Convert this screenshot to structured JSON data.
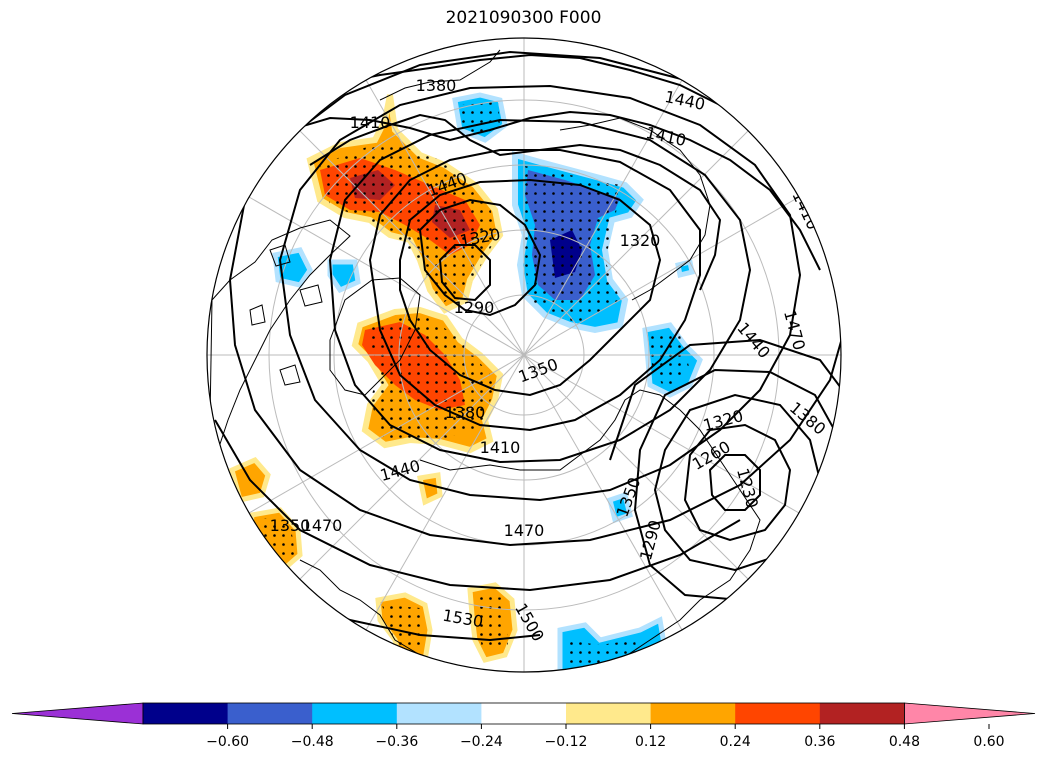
{
  "title": "2021090300 F000",
  "map": {
    "projection": "north-polar-stereographic",
    "field_colors": {
      "positive": [
        "#ffe98c",
        "#ffa500",
        "#ff4500",
        "#b22222"
      ],
      "negative": [
        "#b2e2ff",
        "#00bfff",
        "#3a5fcd",
        "#00008b"
      ],
      "stipple": "#000000",
      "contour": "#000000",
      "coastline": "#000000",
      "grid": "#bbbbbb"
    },
    "contour_labels": [
      {
        "id": "c1380a",
        "text": "1380"
      },
      {
        "id": "c1410a",
        "text": "1410"
      },
      {
        "id": "c1440a",
        "text": "1440"
      },
      {
        "id": "c1410b",
        "text": "1410"
      },
      {
        "id": "c1440b",
        "text": "1440"
      },
      {
        "id": "c1410c",
        "text": "1410"
      },
      {
        "id": "c1320a",
        "text": "1320"
      },
      {
        "id": "c1320b",
        "text": "1320"
      },
      {
        "id": "c1470a",
        "text": "1470"
      },
      {
        "id": "c1290a",
        "text": "1290"
      },
      {
        "id": "c1440c",
        "text": "1440"
      },
      {
        "id": "c1350a",
        "text": "1350"
      },
      {
        "id": "c1380b",
        "text": "1380"
      },
      {
        "id": "c1320c",
        "text": "1320"
      },
      {
        "id": "c1380c",
        "text": "1380"
      },
      {
        "id": "c1410d",
        "text": "1410"
      },
      {
        "id": "c1260a",
        "text": "1260"
      },
      {
        "id": "c1230a",
        "text": "1230"
      },
      {
        "id": "c1440d",
        "text": "1440"
      },
      {
        "id": "c1350b",
        "text": "1350"
      },
      {
        "id": "c1290b",
        "text": "1290"
      },
      {
        "id": "c1470b",
        "text": "1470"
      },
      {
        "id": "c1350c",
        "text": "1350"
      },
      {
        "id": "c1530a",
        "text": "1530"
      },
      {
        "id": "c1500a",
        "text": "1500"
      },
      {
        "id": "c1470c",
        "text": "1470"
      }
    ]
  },
  "colorbar": {
    "extend": "both",
    "colors": [
      "#9b30d6",
      "#00008b",
      "#3a5fcd",
      "#00bfff",
      "#b2e2ff",
      "#ffffff",
      "#ffe98c",
      "#ffa500",
      "#ff4500",
      "#b22222",
      "#ff86a8"
    ],
    "ticks": [
      "−0.60",
      "−0.48",
      "−0.36",
      "−0.24",
      "−0.12",
      "0.12",
      "0.24",
      "0.36",
      "0.48",
      "0.60"
    ]
  }
}
